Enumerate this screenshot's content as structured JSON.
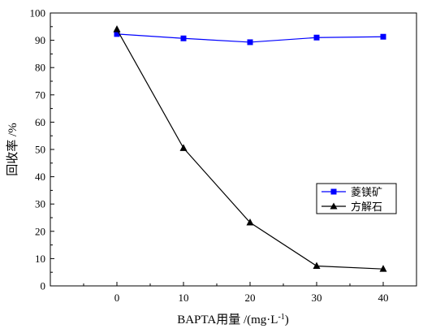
{
  "chart_data": {
    "type": "line",
    "x": [
      0,
      10,
      20,
      30,
      40
    ],
    "xlim": [
      -10,
      45
    ],
    "ylim": [
      0,
      100
    ],
    "xticks": [
      0,
      10,
      20,
      30,
      40
    ],
    "yticks": [
      0,
      10,
      20,
      30,
      40,
      50,
      60,
      70,
      80,
      90,
      100
    ],
    "xlabel": "BAPTA用量 /(mg·L",
    "xlabel_sup": "-1",
    "xlabel_tail": ")",
    "ylabel": "回收率 /%",
    "grid": false,
    "legend_position": "middle-right",
    "series": [
      {
        "name": "菱镁矿",
        "values": [
          92.3,
          90.7,
          89.3,
          91.0,
          91.3
        ],
        "color": "#0000ff",
        "marker": "square"
      },
      {
        "name": "方解石",
        "values": [
          94.0,
          50.5,
          23.2,
          7.3,
          6.2
        ],
        "color": "#000000",
        "marker": "triangle"
      }
    ]
  }
}
